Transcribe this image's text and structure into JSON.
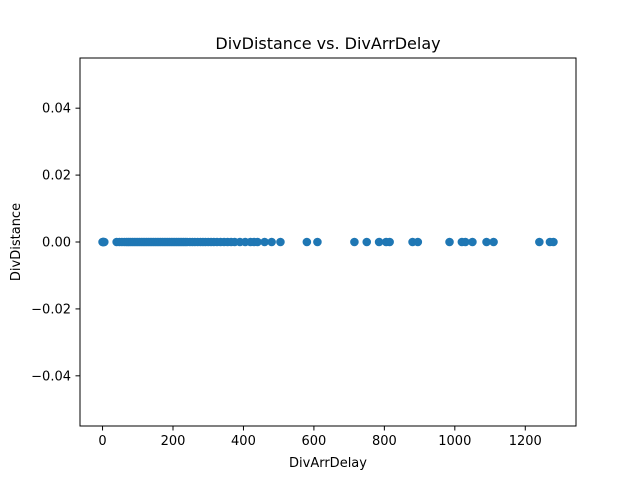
{
  "chart_data": {
    "type": "scatter",
    "title": "DivDistance vs. DivArrDelay",
    "xlabel": "DivArrDelay",
    "ylabel": "DivDistance",
    "xlim": [
      -64,
      1344
    ],
    "ylim": [
      -0.055,
      0.055
    ],
    "xticks": [
      0,
      200,
      400,
      600,
      800,
      1000,
      1200
    ],
    "yticks": [
      -0.04,
      -0.02,
      0.0,
      0.02,
      0.04
    ],
    "ytick_labels": [
      "−0.04",
      "−0.02",
      "0.00",
      "0.02",
      "0.04"
    ],
    "grid": false,
    "marker_color": "#1f77b4",
    "series": [
      {
        "x": [
          0,
          1,
          2,
          3,
          5,
          40,
          48,
          55,
          62,
          68,
          75,
          80,
          85,
          90,
          95,
          100,
          105,
          110,
          115,
          120,
          125,
          130,
          135,
          140,
          145,
          150,
          155,
          160,
          165,
          170,
          175,
          180,
          185,
          190,
          195,
          200,
          205,
          210,
          215,
          220,
          225,
          230,
          235,
          240,
          248,
          255,
          262,
          270,
          278,
          285,
          292,
          300,
          308,
          316,
          325,
          335,
          345,
          355,
          365,
          375,
          390,
          405,
          420,
          430,
          440,
          460,
          480,
          505,
          580,
          610,
          715,
          750,
          785,
          805,
          815,
          880,
          895,
          985,
          1020,
          1030,
          1050,
          1090,
          1110,
          1240,
          1270,
          1280
        ],
        "y": [
          0,
          0,
          0,
          0,
          0,
          0,
          0,
          0,
          0,
          0,
          0,
          0,
          0,
          0,
          0,
          0,
          0,
          0,
          0,
          0,
          0,
          0,
          0,
          0,
          0,
          0,
          0,
          0,
          0,
          0,
          0,
          0,
          0,
          0,
          0,
          0,
          0,
          0,
          0,
          0,
          0,
          0,
          0,
          0,
          0,
          0,
          0,
          0,
          0,
          0,
          0,
          0,
          0,
          0,
          0,
          0,
          0,
          0,
          0,
          0,
          0,
          0,
          0,
          0,
          0,
          0,
          0,
          0,
          0,
          0,
          0,
          0,
          0,
          0,
          0,
          0,
          0,
          0,
          0,
          0,
          0,
          0,
          0,
          0,
          0,
          0
        ]
      }
    ]
  }
}
